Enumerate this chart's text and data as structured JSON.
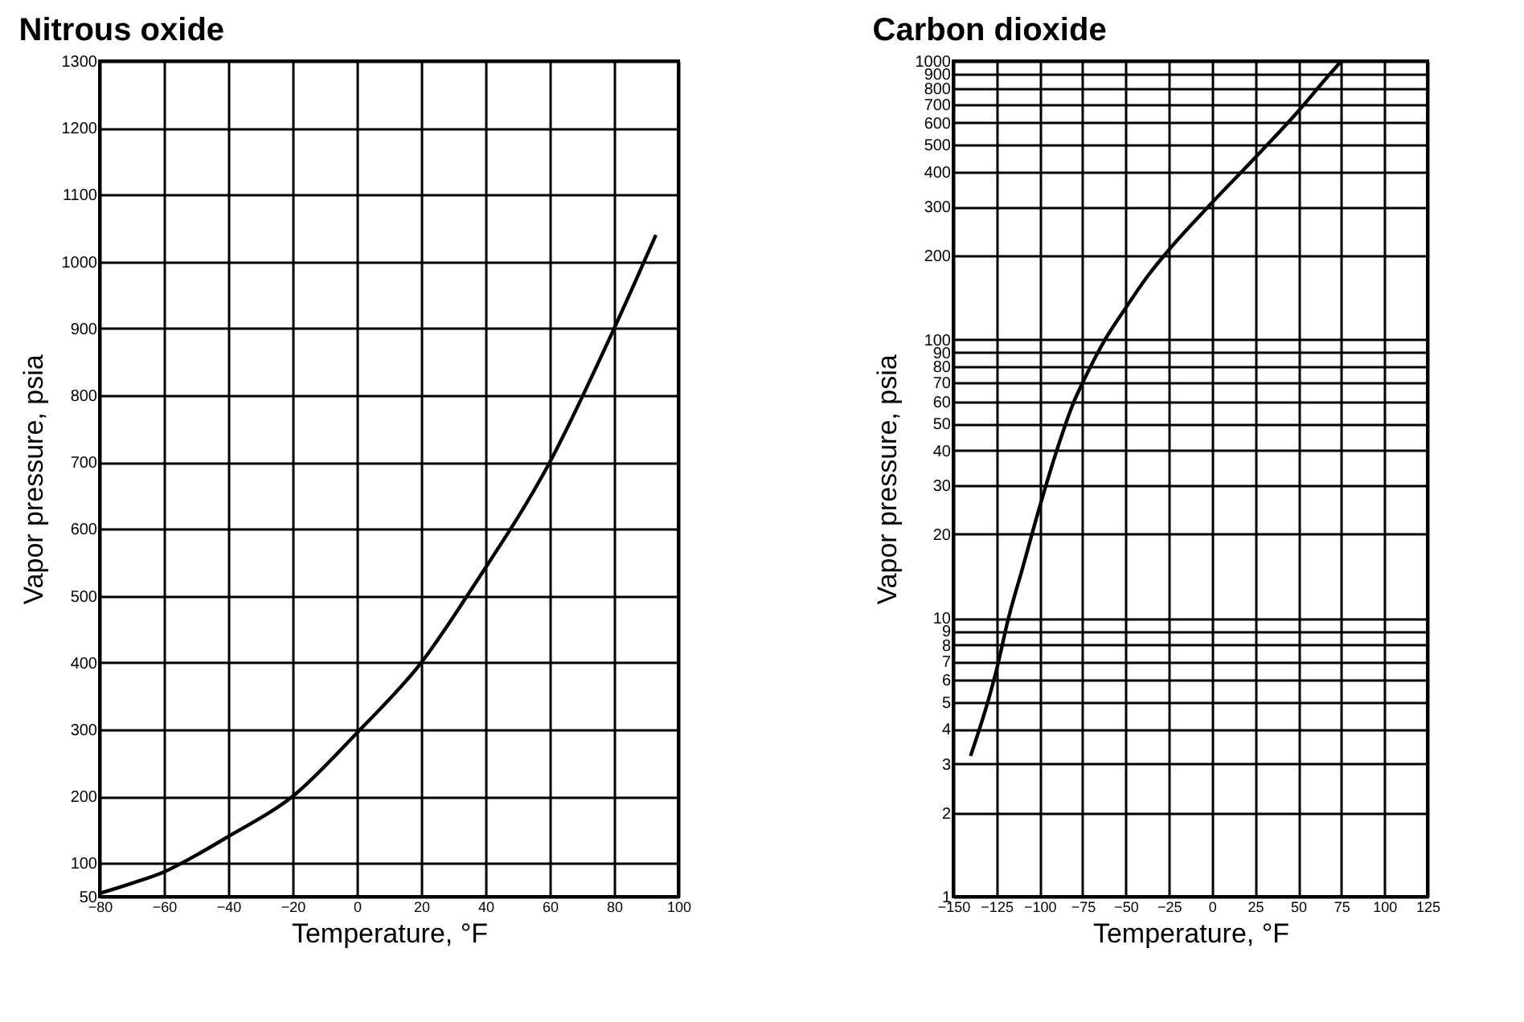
{
  "chart_data": [
    {
      "type": "line",
      "title": "Nitrous oxide",
      "xlabel": "Temperature, °F",
      "ylabel": "Vapor pressure, psia",
      "x": [
        -80,
        -70,
        -60,
        -50,
        -40,
        -20,
        0,
        20,
        37,
        60,
        80,
        93
      ],
      "series": [
        {
          "color": "#000000",
          "values": [
            55,
            70,
            87,
            112,
            140,
            200,
            295,
            400,
            520,
            700,
            900,
            1040
          ]
        }
      ],
      "xlim": [
        -80,
        100
      ],
      "xticks": [
        -80,
        -60,
        -40,
        -20,
        0,
        20,
        40,
        60,
        80,
        100
      ],
      "ylim": [
        50,
        1300
      ],
      "yticks": [
        50,
        100,
        200,
        300,
        400,
        500,
        600,
        700,
        800,
        900,
        1000,
        1100,
        1200,
        1300
      ],
      "grid": true
    },
    {
      "type": "line",
      "title": "Carbon dioxide",
      "xlabel": "Temperature, °F",
      "ylabel": "Vapor pressure, psia",
      "x": [
        -140,
        -130,
        -125,
        -118,
        -110,
        -100,
        -90,
        -80,
        -75,
        -62,
        -50,
        -37,
        -25,
        0,
        25,
        50,
        65,
        75
      ],
      "series": [
        {
          "color": "#000000",
          "values": [
            3.2,
            5,
            6.5,
            10,
            15,
            25,
            40,
            60,
            70,
            100,
            130,
            170,
            210,
            310,
            450,
            660,
            850,
            1000
          ]
        }
      ],
      "xlim": [
        -150,
        125
      ],
      "xticks": [
        -150,
        -125,
        -100,
        -75,
        -50,
        -25,
        0,
        25,
        50,
        75,
        100,
        125
      ],
      "ylim": [
        1,
        1000
      ],
      "yticks": [
        1,
        2,
        3,
        4,
        5,
        6,
        7,
        8,
        9,
        10,
        20,
        30,
        40,
        50,
        60,
        70,
        80,
        90,
        100,
        200,
        300,
        400,
        500,
        600,
        700,
        800,
        900,
        1000
      ],
      "grid": true,
      "log": "y"
    }
  ]
}
